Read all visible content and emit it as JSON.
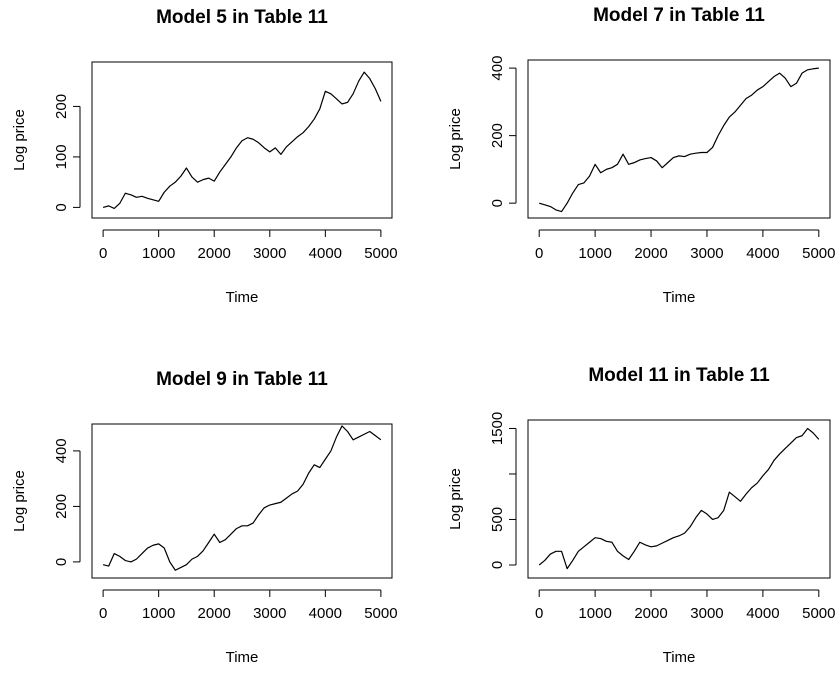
{
  "chart_data": [
    {
      "type": "line",
      "title": "Model 5 in Table 11",
      "x_label": "Time",
      "y_label": "Log price",
      "color": "#000000",
      "x": [
        0,
        100,
        200,
        300,
        400,
        500,
        600,
        700,
        800,
        900,
        1000,
        1100,
        1200,
        1300,
        1400,
        1500,
        1600,
        1700,
        1800,
        1900,
        2000,
        2100,
        2200,
        2300,
        2400,
        2500,
        2600,
        2700,
        2800,
        2900,
        3000,
        3100,
        3200,
        3300,
        3400,
        3500,
        3600,
        3700,
        3800,
        3900,
        4000,
        4100,
        4200,
        4300,
        4400,
        4500,
        4600,
        4700,
        4800,
        4900,
        5000
      ],
      "values": [
        0,
        3,
        -2,
        8,
        28,
        25,
        20,
        22,
        18,
        15,
        12,
        30,
        42,
        50,
        62,
        78,
        60,
        50,
        55,
        58,
        52,
        70,
        85,
        100,
        118,
        132,
        138,
        135,
        128,
        118,
        110,
        118,
        105,
        120,
        130,
        140,
        148,
        160,
        175,
        195,
        230,
        225,
        215,
        205,
        208,
        225,
        250,
        268,
        255,
        235,
        210
      ],
      "xlim": [
        -200,
        5200
      ],
      "ylim": [
        -21,
        288
      ],
      "xticks": [
        0,
        1000,
        2000,
        3000,
        4000,
        5000
      ],
      "yticks": [
        0,
        100,
        200
      ]
    },
    {
      "type": "line",
      "title": "Model 7 in Table 11",
      "x_label": "Time",
      "y_label": "Log price",
      "color": "#000000",
      "x": [
        0,
        100,
        200,
        300,
        400,
        500,
        600,
        700,
        800,
        900,
        1000,
        1100,
        1200,
        1300,
        1400,
        1500,
        1600,
        1700,
        1800,
        1900,
        2000,
        2100,
        2200,
        2300,
        2400,
        2500,
        2600,
        2700,
        2800,
        2900,
        3000,
        3100,
        3200,
        3300,
        3400,
        3500,
        3600,
        3700,
        3800,
        3900,
        4000,
        4100,
        4200,
        4300,
        4400,
        4500,
        4600,
        4700,
        4800,
        4900,
        5000
      ],
      "values": [
        0,
        -5,
        -10,
        -20,
        -25,
        0,
        30,
        55,
        60,
        80,
        115,
        90,
        100,
        105,
        115,
        145,
        115,
        120,
        128,
        132,
        135,
        125,
        105,
        120,
        135,
        140,
        138,
        145,
        148,
        150,
        150,
        165,
        200,
        230,
        255,
        270,
        290,
        310,
        320,
        335,
        345,
        360,
        375,
        385,
        370,
        345,
        355,
        385,
        395,
        398,
        400
      ],
      "xlim": [
        -200,
        5200
      ],
      "ylim": [
        -44,
        424
      ],
      "xticks": [
        0,
        1000,
        2000,
        3000,
        4000,
        5000
      ],
      "yticks": [
        0,
        200,
        400
      ]
    },
    {
      "type": "line",
      "title": "Model 9 in Table 11",
      "x_label": "Time",
      "y_label": "Log price",
      "color": "#000000",
      "x": [
        0,
        100,
        200,
        300,
        400,
        500,
        600,
        700,
        800,
        900,
        1000,
        1100,
        1200,
        1300,
        1400,
        1500,
        1600,
        1700,
        1800,
        1900,
        2000,
        2100,
        2200,
        2300,
        2400,
        2500,
        2600,
        2700,
        2800,
        2900,
        3000,
        3100,
        3200,
        3300,
        3400,
        3500,
        3600,
        3700,
        3800,
        3900,
        4000,
        4100,
        4200,
        4300,
        4400,
        4500,
        4600,
        4700,
        4800,
        4900,
        5000
      ],
      "values": [
        -10,
        -15,
        30,
        20,
        5,
        0,
        10,
        30,
        50,
        60,
        65,
        50,
        0,
        -30,
        -20,
        -10,
        10,
        20,
        40,
        70,
        100,
        70,
        80,
        100,
        120,
        130,
        130,
        140,
        170,
        195,
        205,
        210,
        215,
        230,
        245,
        255,
        280,
        320,
        350,
        340,
        370,
        400,
        450,
        490,
        470,
        440,
        450,
        460,
        470,
        455,
        440
      ],
      "xlim": [
        -200,
        5200
      ],
      "ylim": [
        -58,
        497
      ],
      "xticks": [
        0,
        1000,
        2000,
        3000,
        4000,
        5000
      ],
      "yticks": [
        0,
        200,
        400
      ]
    },
    {
      "type": "line",
      "title": "Model 11 in Table 11",
      "x_label": "Time",
      "y_label": "Log price",
      "color": "#000000",
      "x": [
        0,
        100,
        200,
        300,
        400,
        500,
        600,
        700,
        800,
        900,
        1000,
        1100,
        1200,
        1300,
        1400,
        1500,
        1600,
        1700,
        1800,
        1900,
        2000,
        2100,
        2200,
        2300,
        2400,
        2500,
        2600,
        2700,
        2800,
        2900,
        3000,
        3100,
        3200,
        3300,
        3400,
        3500,
        3600,
        3700,
        3800,
        3900,
        4000,
        4100,
        4200,
        4300,
        4400,
        4500,
        4600,
        4700,
        4800,
        4900,
        5000
      ],
      "values": [
        0,
        50,
        120,
        150,
        150,
        -40,
        50,
        150,
        200,
        250,
        300,
        290,
        260,
        250,
        150,
        100,
        60,
        150,
        250,
        220,
        200,
        210,
        240,
        270,
        300,
        320,
        350,
        420,
        520,
        600,
        560,
        500,
        520,
        600,
        800,
        750,
        700,
        780,
        850,
        900,
        980,
        1050,
        1150,
        1220,
        1280,
        1340,
        1400,
        1420,
        1500,
        1450,
        1380
      ],
      "xlim": [
        -200,
        5200
      ],
      "ylim": [
        -143,
        1593
      ],
      "xticks": [
        0,
        1000,
        2000,
        3000,
        4000,
        5000
      ],
      "yticks": [
        0,
        500,
        {
          "value": 1000,
          "label": null
        },
        1500
      ]
    }
  ]
}
